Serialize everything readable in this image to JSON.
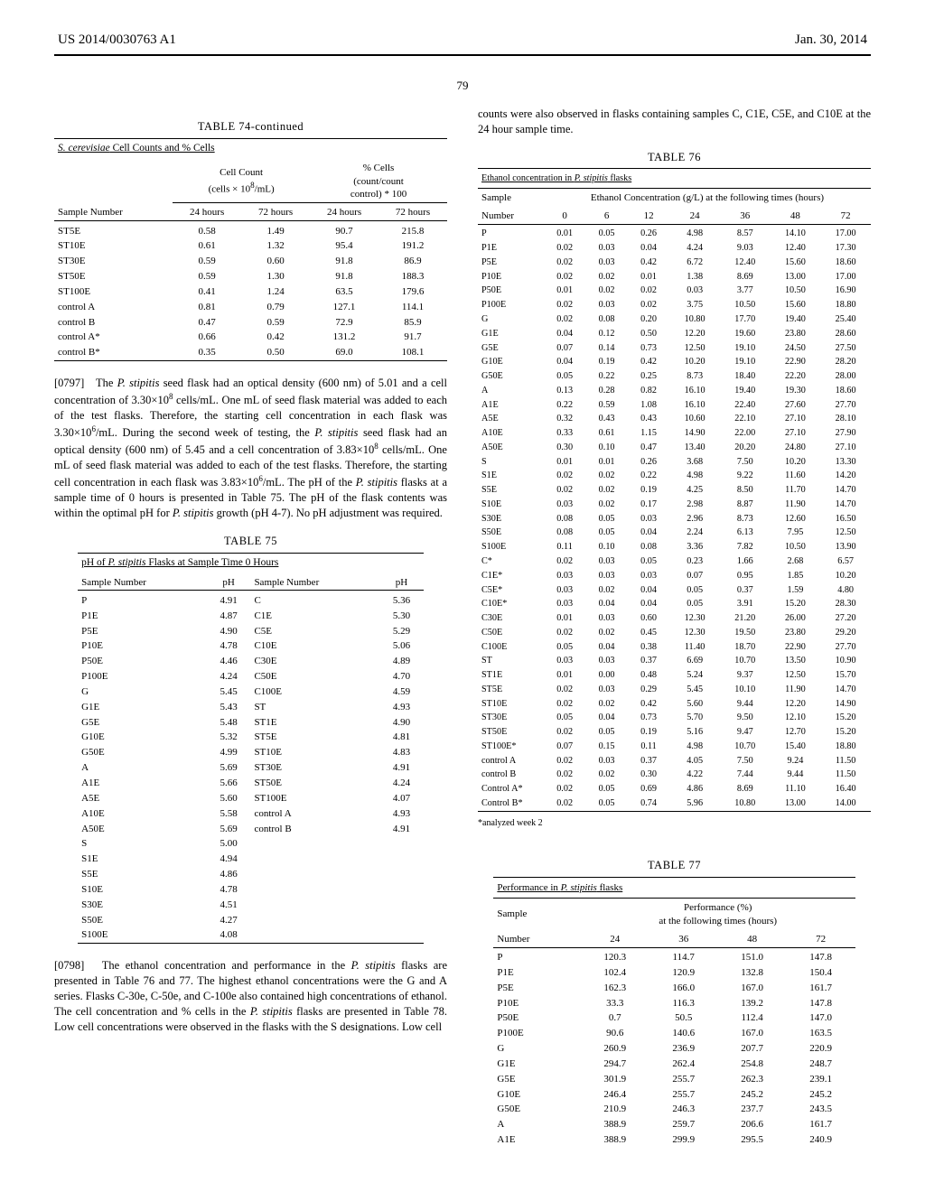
{
  "header": {
    "left": "US 2014/0030763 A1",
    "right": "Jan. 30, 2014"
  },
  "page_number": "79",
  "table74": {
    "caption": "TABLE 74-continued",
    "title_html": "<span class='underline'><span class='italic'>S. cerevisiae</span> Cell Counts and % Cells</span>",
    "super_headers": [
      "",
      "Cell Count<br>(cells × 10<sup>8</sup>/mL)",
      "% Cells<br>(count/count<br>control) * 100"
    ],
    "sub_headers": [
      "Sample Number",
      "24 hours",
      "72 hours",
      "24 hours",
      "72 hours"
    ],
    "rows": [
      [
        "ST5E",
        "0.58",
        "1.49",
        "90.7",
        "215.8"
      ],
      [
        "ST10E",
        "0.61",
        "1.32",
        "95.4",
        "191.2"
      ],
      [
        "ST30E",
        "0.59",
        "0.60",
        "91.8",
        "86.9"
      ],
      [
        "ST50E",
        "0.59",
        "1.30",
        "91.8",
        "188.3"
      ],
      [
        "ST100E",
        "0.41",
        "1.24",
        "63.5",
        "179.6"
      ],
      [
        "control A",
        "0.81",
        "0.79",
        "127.1",
        "114.1"
      ],
      [
        "control B",
        "0.47",
        "0.59",
        "72.9",
        "85.9"
      ],
      [
        "control A*",
        "0.66",
        "0.42",
        "131.2",
        "91.7"
      ],
      [
        "control B*",
        "0.35",
        "0.50",
        "69.0",
        "108.1"
      ]
    ]
  },
  "para797": {
    "num": "[0797]",
    "text_html": "&nbsp;&nbsp;&nbsp;The <span class='italic'>P. stipitis</span> seed flask had an optical density (600 nm) of 5.01 and a cell concentration of 3.30×10<sup>8</sup> cells/mL. One mL of seed flask material was added to each of the test flasks. Therefore, the starting cell concentration in each flask was 3.30×10<sup>6</sup>/mL. During the second week of testing, the <span class='italic'>P. stipitis</span> seed flask had an optical density (600 nm) of 5.45 and a cell concentration of 3.83×10<sup>8</sup> cells/mL. One mL of seed flask material was added to each of the test flasks. Therefore, the starting cell concentration in each flask was 3.83×10<sup>6</sup>/mL. The pH of the <span class='italic'>P. stipitis</span> flasks at a sample time of 0 hours is presented in Table 75. The pH of the flask contents was within the optimal pH for <span class='italic'>P. stipitis</span> growth (pH 4-7). No pH adjustment was required."
  },
  "table75": {
    "caption": "TABLE 75",
    "title_html": "<span class='underline'>pH of <span class='italic'>P. stipitis</span> Flasks at Sample Time 0 Hours</span>",
    "headers": [
      "Sample Number",
      "pH",
      "Sample Number",
      "pH"
    ],
    "rows": [
      [
        "P",
        "4.91",
        "C",
        "5.36"
      ],
      [
        "P1E",
        "4.87",
        "C1E",
        "5.30"
      ],
      [
        "P5E",
        "4.90",
        "C5E",
        "5.29"
      ],
      [
        "P10E",
        "4.78",
        "C10E",
        "5.06"
      ],
      [
        "P50E",
        "4.46",
        "C30E",
        "4.89"
      ],
      [
        "P100E",
        "4.24",
        "C50E",
        "4.70"
      ],
      [
        "G",
        "5.45",
        "C100E",
        "4.59"
      ],
      [
        "G1E",
        "5.43",
        "ST",
        "4.93"
      ],
      [
        "G5E",
        "5.48",
        "ST1E",
        "4.90"
      ],
      [
        "G10E",
        "5.32",
        "ST5E",
        "4.81"
      ],
      [
        "G50E",
        "4.99",
        "ST10E",
        "4.83"
      ],
      [
        "A",
        "5.69",
        "ST30E",
        "4.91"
      ],
      [
        "A1E",
        "5.66",
        "ST50E",
        "4.24"
      ],
      [
        "A5E",
        "5.60",
        "ST100E",
        "4.07"
      ],
      [
        "A10E",
        "5.58",
        "control A",
        "4.93"
      ],
      [
        "A50E",
        "5.69",
        "control B",
        "4.91"
      ],
      [
        "S",
        "5.00",
        "",
        ""
      ],
      [
        "S1E",
        "4.94",
        "",
        ""
      ],
      [
        "S5E",
        "4.86",
        "",
        ""
      ],
      [
        "S10E",
        "4.78",
        "",
        ""
      ],
      [
        "S30E",
        "4.51",
        "",
        ""
      ],
      [
        "S50E",
        "4.27",
        "",
        ""
      ],
      [
        "S100E",
        "4.08",
        "",
        ""
      ]
    ]
  },
  "para798": {
    "num": "[0798]",
    "text_html": "&nbsp;&nbsp;&nbsp;The ethanol concentration and performance in the <span class='italic'>P. stipitis</span> flasks are presented in Table 76 and 77. The highest ethanol concentrations were the G and A series. Flasks C-30e, C-50e, and C-100e also contained high concentrations of ethanol. The cell concentration and % cells in the <span class='italic'>P. stipitis</span> flasks are presented in Table 78. Low cell concentrations were observed in the flasks with the S designations. Low cell"
  },
  "right_intro": "counts were also observed in flasks containing samples C, C1E, C5E, and C10E at the 24 hour sample time.",
  "table76": {
    "caption": "TABLE 76",
    "title_html": "<span class='underline'>Ethanol concentration in <span class='italic'>P. stipitis</span> flasks</span>",
    "sample_label": "Sample",
    "eth_label_html": "<span class='underline'>Ethanol Concentration (g/L) at the following times (hours)</span>",
    "number_label": "Number",
    "time_headers": [
      "0",
      "6",
      "12",
      "24",
      "36",
      "48",
      "72"
    ],
    "rows": [
      [
        "P",
        "0.01",
        "0.05",
        "0.26",
        "4.98",
        "8.57",
        "14.10",
        "17.00"
      ],
      [
        "P1E",
        "0.02",
        "0.03",
        "0.04",
        "4.24",
        "9.03",
        "12.40",
        "17.30"
      ],
      [
        "P5E",
        "0.02",
        "0.03",
        "0.42",
        "6.72",
        "12.40",
        "15.60",
        "18.60"
      ],
      [
        "P10E",
        "0.02",
        "0.02",
        "0.01",
        "1.38",
        "8.69",
        "13.00",
        "17.00"
      ],
      [
        "P50E",
        "0.01",
        "0.02",
        "0.02",
        "0.03",
        "3.77",
        "10.50",
        "16.90"
      ],
      [
        "P100E",
        "0.02",
        "0.03",
        "0.02",
        "3.75",
        "10.50",
        "15.60",
        "18.80"
      ],
      [
        "G",
        "0.02",
        "0.08",
        "0.20",
        "10.80",
        "17.70",
        "19.40",
        "25.40"
      ],
      [
        "G1E",
        "0.04",
        "0.12",
        "0.50",
        "12.20",
        "19.60",
        "23.80",
        "28.60"
      ],
      [
        "G5E",
        "0.07",
        "0.14",
        "0.73",
        "12.50",
        "19.10",
        "24.50",
        "27.50"
      ],
      [
        "G10E",
        "0.04",
        "0.19",
        "0.42",
        "10.20",
        "19.10",
        "22.90",
        "28.20"
      ],
      [
        "G50E",
        "0.05",
        "0.22",
        "0.25",
        "8.73",
        "18.40",
        "22.20",
        "28.00"
      ],
      [
        "A",
        "0.13",
        "0.28",
        "0.82",
        "16.10",
        "19.40",
        "19.30",
        "18.60"
      ],
      [
        "A1E",
        "0.22",
        "0.59",
        "1.08",
        "16.10",
        "22.40",
        "27.60",
        "27.70"
      ],
      [
        "A5E",
        "0.32",
        "0.43",
        "0.43",
        "10.60",
        "22.10",
        "27.10",
        "28.10"
      ],
      [
        "A10E",
        "0.33",
        "0.61",
        "1.15",
        "14.90",
        "22.00",
        "27.10",
        "27.90"
      ],
      [
        "A50E",
        "0.30",
        "0.10",
        "0.47",
        "13.40",
        "20.20",
        "24.80",
        "27.10"
      ],
      [
        "S",
        "0.01",
        "0.01",
        "0.26",
        "3.68",
        "7.50",
        "10.20",
        "13.30"
      ],
      [
        "S1E",
        "0.02",
        "0.02",
        "0.22",
        "4.98",
        "9.22",
        "11.60",
        "14.20"
      ],
      [
        "S5E",
        "0.02",
        "0.02",
        "0.19",
        "4.25",
        "8.50",
        "11.70",
        "14.70"
      ],
      [
        "S10E",
        "0.03",
        "0.02",
        "0.17",
        "2.98",
        "8.87",
        "11.90",
        "14.70"
      ],
      [
        "S30E",
        "0.08",
        "0.05",
        "0.03",
        "2.96",
        "8.73",
        "12.60",
        "16.50"
      ],
      [
        "S50E",
        "0.08",
        "0.05",
        "0.04",
        "2.24",
        "6.13",
        "7.95",
        "12.50"
      ],
      [
        "S100E",
        "0.11",
        "0.10",
        "0.08",
        "3.36",
        "7.82",
        "10.50",
        "13.90"
      ],
      [
        "C*",
        "0.02",
        "0.03",
        "0.05",
        "0.23",
        "1.66",
        "2.68",
        "6.57"
      ],
      [
        "C1E*",
        "0.03",
        "0.03",
        "0.03",
        "0.07",
        "0.95",
        "1.85",
        "10.20"
      ],
      [
        "C5E*",
        "0.03",
        "0.02",
        "0.04",
        "0.05",
        "0.37",
        "1.59",
        "4.80"
      ],
      [
        "C10E*",
        "0.03",
        "0.04",
        "0.04",
        "0.05",
        "3.91",
        "15.20",
        "28.30"
      ],
      [
        "C30E",
        "0.01",
        "0.03",
        "0.60",
        "12.30",
        "21.20",
        "26.00",
        "27.20"
      ],
      [
        "C50E",
        "0.02",
        "0.02",
        "0.45",
        "12.30",
        "19.50",
        "23.80",
        "29.20"
      ],
      [
        "C100E",
        "0.05",
        "0.04",
        "0.38",
        "11.40",
        "18.70",
        "22.90",
        "27.70"
      ],
      [
        "ST",
        "0.03",
        "0.03",
        "0.37",
        "6.69",
        "10.70",
        "13.50",
        "10.90"
      ],
      [
        "ST1E",
        "0.01",
        "0.00",
        "0.48",
        "5.24",
        "9.37",
        "12.50",
        "15.70"
      ],
      [
        "ST5E",
        "0.02",
        "0.03",
        "0.29",
        "5.45",
        "10.10",
        "11.90",
        "14.70"
      ],
      [
        "ST10E",
        "0.02",
        "0.02",
        "0.42",
        "5.60",
        "9.44",
        "12.20",
        "14.90"
      ],
      [
        "ST30E",
        "0.05",
        "0.04",
        "0.73",
        "5.70",
        "9.50",
        "12.10",
        "15.20"
      ],
      [
        "ST50E",
        "0.02",
        "0.05",
        "0.19",
        "5.16",
        "9.47",
        "12.70",
        "15.20"
      ],
      [
        "ST100E*",
        "0.07",
        "0.15",
        "0.11",
        "4.98",
        "10.70",
        "15.40",
        "18.80"
      ],
      [
        "control A",
        "0.02",
        "0.03",
        "0.37",
        "4.05",
        "7.50",
        "9.24",
        "11.50"
      ],
      [
        "control B",
        "0.02",
        "0.02",
        "0.30",
        "4.22",
        "7.44",
        "9.44",
        "11.50"
      ],
      [
        "Control A*",
        "0.02",
        "0.05",
        "0.69",
        "4.86",
        "8.69",
        "11.10",
        "16.40"
      ],
      [
        "Control B*",
        "0.02",
        "0.05",
        "0.74",
        "5.96",
        "10.80",
        "13.00",
        "14.00"
      ]
    ],
    "footnote": "*analyzed week 2"
  },
  "table77": {
    "caption": "TABLE 77",
    "title_html": "<span class='underline'>Performance in <span class='italic'>P. stipitis</span> flasks</span>",
    "sample_label": "Sample",
    "perf_label_html": "Performance (%)<br><span class='underline'>at the following times (hours)</span>",
    "number_label": "Number",
    "time_headers": [
      "24",
      "36",
      "48",
      "72"
    ],
    "rows": [
      [
        "P",
        "120.3",
        "114.7",
        "151.0",
        "147.8"
      ],
      [
        "P1E",
        "102.4",
        "120.9",
        "132.8",
        "150.4"
      ],
      [
        "P5E",
        "162.3",
        "166.0",
        "167.0",
        "161.7"
      ],
      [
        "P10E",
        "33.3",
        "116.3",
        "139.2",
        "147.8"
      ],
      [
        "P50E",
        "0.7",
        "50.5",
        "112.4",
        "147.0"
      ],
      [
        "P100E",
        "90.6",
        "140.6",
        "167.0",
        "163.5"
      ],
      [
        "G",
        "260.9",
        "236.9",
        "207.7",
        "220.9"
      ],
      [
        "G1E",
        "294.7",
        "262.4",
        "254.8",
        "248.7"
      ],
      [
        "G5E",
        "301.9",
        "255.7",
        "262.3",
        "239.1"
      ],
      [
        "G10E",
        "246.4",
        "255.7",
        "245.2",
        "245.2"
      ],
      [
        "G50E",
        "210.9",
        "246.3",
        "237.7",
        "243.5"
      ],
      [
        "A",
        "388.9",
        "259.7",
        "206.6",
        "161.7"
      ],
      [
        "A1E",
        "388.9",
        "299.9",
        "295.5",
        "240.9"
      ]
    ]
  }
}
